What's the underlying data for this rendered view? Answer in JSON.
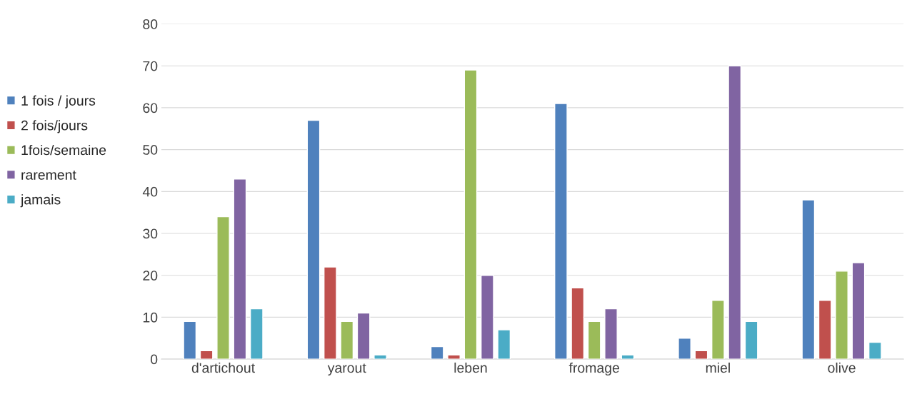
{
  "chart_data": {
    "type": "bar",
    "categories": [
      "d'artichout",
      "yarout",
      "leben",
      "fromage",
      "miel",
      "olive"
    ],
    "series": [
      {
        "name": "1 fois / jours",
        "color": "#4f81bd",
        "values": [
          9,
          57,
          3,
          61,
          5,
          38
        ]
      },
      {
        "name": "2 fois/jours",
        "color": "#c0504d",
        "values": [
          2,
          22,
          1,
          17,
          2,
          14
        ]
      },
      {
        "name": "1fois/semaine",
        "color": "#9bbb59",
        "values": [
          34,
          9,
          69,
          9,
          14,
          21
        ]
      },
      {
        "name": "rarement",
        "color": "#8064a2",
        "values": [
          43,
          11,
          20,
          12,
          70,
          23
        ]
      },
      {
        "name": "jamais",
        "color": "#4bacc6",
        "values": [
          12,
          1,
          7,
          1,
          9,
          4
        ]
      }
    ],
    "ylim": [
      0,
      80
    ],
    "yticks": [
      0,
      10,
      20,
      30,
      40,
      50,
      60,
      70,
      80
    ],
    "grid": "y",
    "legend": "left"
  }
}
